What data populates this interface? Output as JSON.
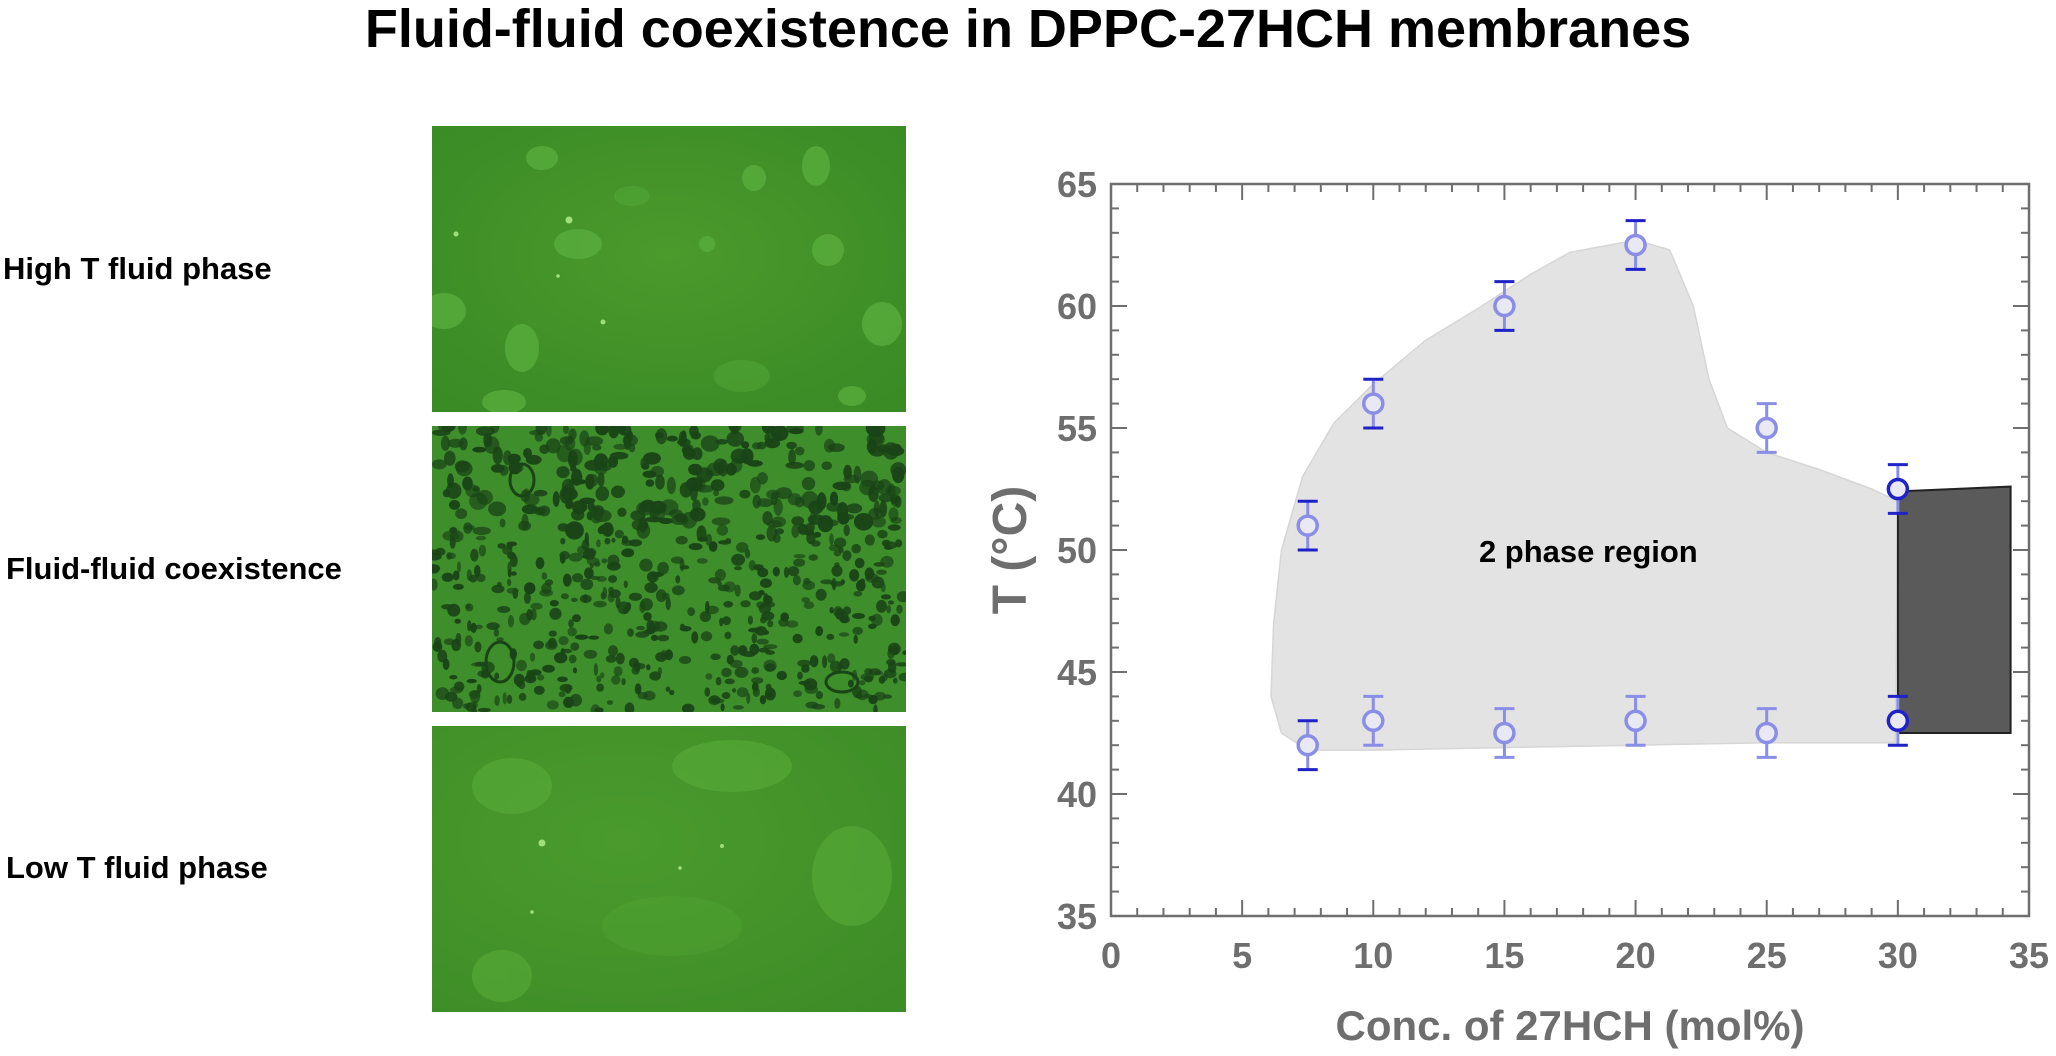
{
  "title": "Fluid-fluid coexistence in DPPC-27HCH membranes",
  "panels": [
    {
      "label": "High T fluid phase"
    },
    {
      "label": "Fluid-fluid coexistence"
    },
    {
      "label": "Low T fluid phase"
    }
  ],
  "colors": {
    "micro_green": "#3e8f2a",
    "micro_green_light": "#5aad3a",
    "micro_dark": "#173d15",
    "region_fill": "#e3e3e3",
    "box_fill": "#5a5a5a",
    "marker_light": "#8a8ee6",
    "marker_dark": "#1f22c8",
    "axis": "#6e6e6e"
  },
  "chart_data": {
    "type": "scatter",
    "title": "",
    "xlabel": "Conc. of 27HCH (mol%)",
    "ylabel": "T (°C)",
    "xlim": [
      0,
      35
    ],
    "ylim": [
      35,
      65
    ],
    "xticks": [
      0,
      5,
      10,
      15,
      20,
      25,
      30,
      35
    ],
    "yticks": [
      35,
      40,
      45,
      50,
      55,
      60,
      65
    ],
    "grid": false,
    "annotation": "2 phase region",
    "series": [
      {
        "points": [
          {
            "x": 7.5,
            "y": 51,
            "err": 1
          },
          {
            "x": 10,
            "y": 56,
            "err": 1
          },
          {
            "x": 15,
            "y": 60,
            "err": 1
          },
          {
            "x": 20,
            "y": 62.5,
            "err": 1
          },
          {
            "x": 25,
            "y": 55,
            "err": 1
          },
          {
            "x": 30,
            "y": 52.5,
            "err": 1
          }
        ]
      },
      {
        "points": [
          {
            "x": 7.5,
            "y": 42,
            "err": 1
          },
          {
            "x": 10,
            "y": 43,
            "err": 1
          },
          {
            "x": 15,
            "y": 42.5,
            "err": 1
          },
          {
            "x": 20,
            "y": 43,
            "err": 1
          },
          {
            "x": 25,
            "y": 42.5,
            "err": 1
          },
          {
            "x": 30,
            "y": 43,
            "err": 1
          }
        ]
      }
    ],
    "region_outline": [
      [
        7.5,
        41.8
      ],
      [
        6.5,
        42.5
      ],
      [
        6.1,
        44
      ],
      [
        6.2,
        47
      ],
      [
        6.5,
        50
      ],
      [
        7.3,
        53
      ],
      [
        8.5,
        55.2
      ],
      [
        10,
        56.8
      ],
      [
        12,
        58.6
      ],
      [
        14,
        59.9
      ],
      [
        16,
        61.3
      ],
      [
        17.5,
        62.2
      ],
      [
        20,
        62.7
      ],
      [
        21.3,
        62.3
      ],
      [
        22.2,
        60
      ],
      [
        22.8,
        57
      ],
      [
        23.5,
        55
      ],
      [
        25,
        54
      ],
      [
        27,
        53.3
      ],
      [
        29,
        52.5
      ],
      [
        30,
        52
      ],
      [
        29.9,
        42.1
      ],
      [
        25,
        42.1
      ],
      [
        20,
        42
      ],
      [
        15,
        41.9
      ],
      [
        10,
        41.8
      ]
    ],
    "shaded_box": [
      [
        30,
        52.4
      ],
      [
        34.3,
        52.6
      ],
      [
        34.3,
        42.5
      ],
      [
        30,
        42.5
      ]
    ]
  }
}
